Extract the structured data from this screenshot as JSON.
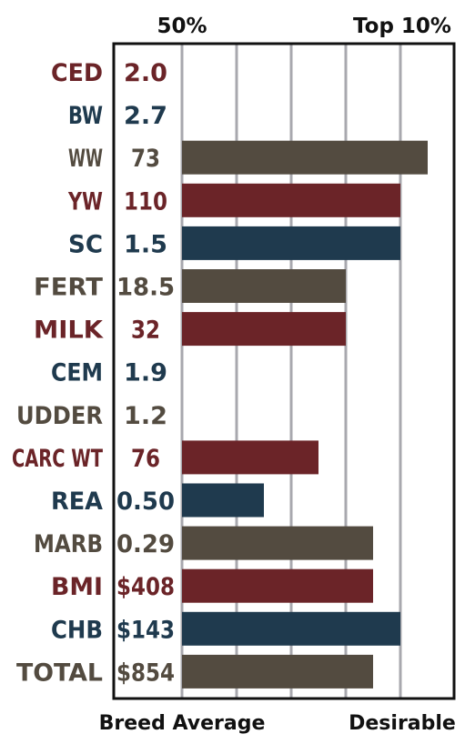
{
  "chart_data": {
    "type": "bar",
    "orientation": "horizontal",
    "top_labels": {
      "left": "50%",
      "right": "Top 10%"
    },
    "bottom_labels": {
      "left": "Breed Average",
      "right": "Desirable"
    },
    "scale": {
      "min": 0,
      "max": 5,
      "gridlines": [
        1,
        2,
        3,
        4
      ]
    },
    "colors": {
      "red": "#6b2428",
      "navy": "#1f3a4e",
      "brown": "#534b40",
      "grid": "#a8a8ae",
      "frame": "#111111"
    },
    "rows": [
      {
        "trait": "CED",
        "value": "2.0",
        "bar": 0,
        "color": "red"
      },
      {
        "trait": "BW",
        "value": "2.7",
        "bar": 0,
        "color": "navy"
      },
      {
        "trait": "WW",
        "value": "73",
        "bar": 4.5,
        "color": "brown"
      },
      {
        "trait": "YW",
        "value": "110",
        "bar": 4,
        "color": "red"
      },
      {
        "trait": "SC",
        "value": "1.5",
        "bar": 4,
        "color": "navy"
      },
      {
        "trait": "FERT",
        "value": "18.5",
        "bar": 3,
        "color": "brown"
      },
      {
        "trait": "MILK",
        "value": "32",
        "bar": 3,
        "color": "red"
      },
      {
        "trait": "CEM",
        "value": "1.9",
        "bar": 0,
        "color": "navy"
      },
      {
        "trait": "UDDER",
        "value": "1.2",
        "bar": 0,
        "color": "brown"
      },
      {
        "trait": "CARC WT",
        "value": "76",
        "bar": 2.5,
        "color": "red"
      },
      {
        "trait": "REA",
        "value": "0.50",
        "bar": 1.5,
        "color": "navy"
      },
      {
        "trait": "MARB",
        "value": "0.29",
        "bar": 3.5,
        "color": "brown"
      },
      {
        "trait": "BMI",
        "value": "$408",
        "bar": 3.5,
        "color": "red"
      },
      {
        "trait": "CHB",
        "value": "$143",
        "bar": 4,
        "color": "navy"
      },
      {
        "trait": "TOTAL",
        "value": "$854",
        "bar": 3.5,
        "color": "brown"
      }
    ]
  }
}
